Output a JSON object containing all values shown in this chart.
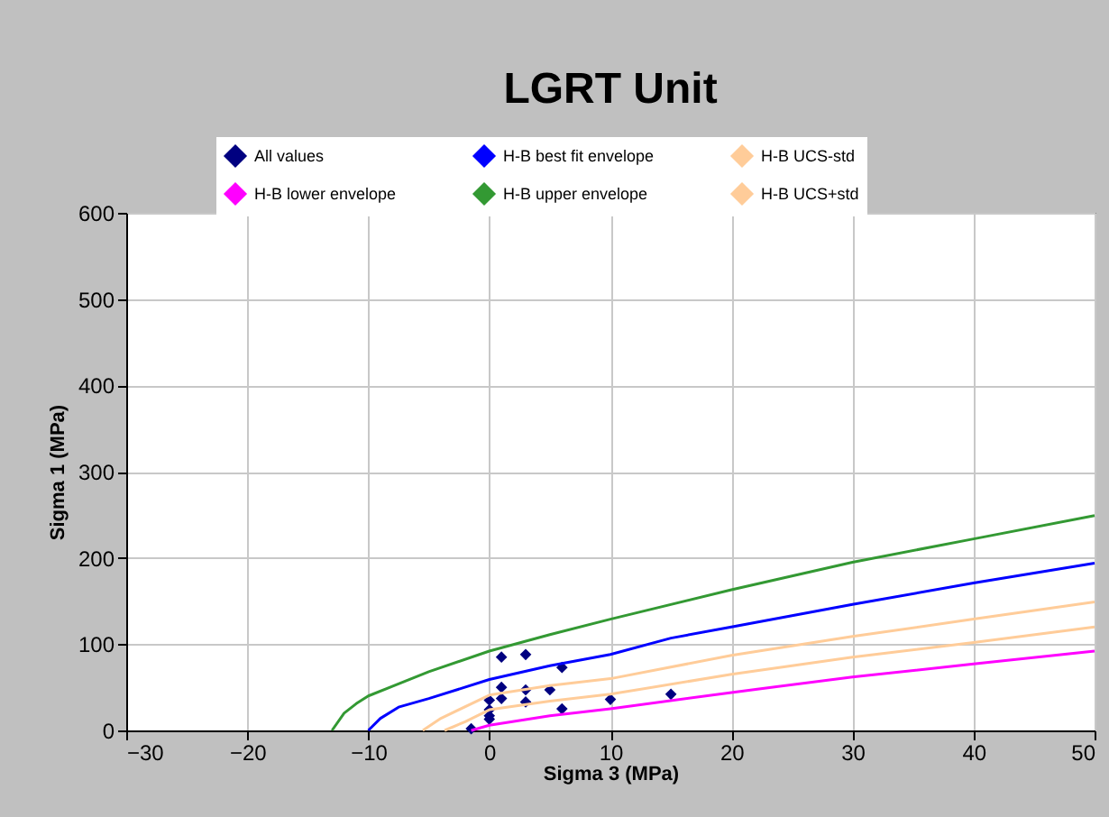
{
  "chart_data": {
    "type": "line",
    "title": "LGRT Unit",
    "xlabel": "Sigma 3 (MPa)",
    "ylabel": "Sigma 1 (MPa)",
    "xlim": [
      -30,
      50
    ],
    "xticks": [
      -30,
      -20,
      -10,
      0,
      10,
      20,
      30,
      40,
      50
    ],
    "ylim": [
      0,
      600
    ],
    "yticks": [
      0,
      100,
      200,
      300,
      400,
      500,
      600
    ],
    "grid": true,
    "legend": "top",
    "marker": "none",
    "line_style": "solid",
    "series": [
      {
        "name": "All values",
        "type": "scatter",
        "marker": "diamond",
        "color": "#000080",
        "x": [
          -1.5,
          0,
          0,
          0,
          0,
          1,
          3,
          6,
          1,
          1,
          3,
          3,
          5,
          6,
          10,
          15
        ],
        "values": [
          2,
          35,
          24,
          17,
          13,
          85,
          88,
          73,
          50,
          37,
          47,
          33,
          47,
          25,
          36,
          42
        ]
      },
      {
        "name": "H-B lower envelope",
        "color": "#ff00ff",
        "x": [
          -1.5,
          0,
          5,
          10,
          20,
          30,
          40,
          50
        ],
        "values": [
          0,
          6,
          17,
          25,
          44,
          62,
          77,
          92
        ]
      },
      {
        "name": "H-B best fit envelope",
        "color": "#0000ff",
        "x": [
          -10,
          -9,
          -7.5,
          -5,
          0,
          5,
          10,
          15,
          20,
          30,
          40,
          50
        ],
        "values": [
          0,
          14,
          27,
          37,
          59,
          75,
          88,
          107,
          120,
          146,
          171,
          194
        ]
      },
      {
        "name": "H-B upper envelope",
        "color": "#339933",
        "x": [
          -13,
          -12,
          -11,
          -10,
          -5,
          0,
          5,
          10,
          20,
          30,
          40,
          50
        ],
        "values": [
          0,
          20,
          31,
          40,
          68,
          92,
          111,
          129,
          163,
          195,
          222,
          249
        ]
      },
      {
        "name": "H-B UCS-std",
        "color": "#ffcc99",
        "x": [
          -3.7,
          -2,
          0,
          5,
          10,
          20,
          30,
          40,
          50
        ],
        "values": [
          0,
          10,
          24,
          34,
          42,
          65,
          85,
          102,
          120
        ]
      },
      {
        "name": "H-B UCS+std",
        "color": "#ffcc99",
        "x": [
          -5.5,
          -4,
          0,
          5,
          10,
          20,
          30,
          40,
          50
        ],
        "values": [
          0,
          14,
          41,
          52,
          60,
          87,
          109,
          129,
          149
        ]
      }
    ]
  }
}
